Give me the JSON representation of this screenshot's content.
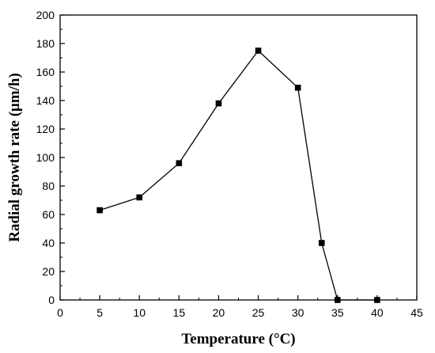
{
  "chart_data": {
    "type": "line",
    "title": "",
    "xlabel": "Temperature (°C)",
    "ylabel": "Radial growth rate (μm/h)",
    "xlim": [
      0,
      45
    ],
    "ylim": [
      0,
      200
    ],
    "xticks": [
      0,
      5,
      10,
      15,
      20,
      25,
      30,
      35,
      40,
      45
    ],
    "yticks": [
      0,
      20,
      40,
      60,
      80,
      100,
      120,
      140,
      160,
      180,
      200
    ],
    "grid": false,
    "legend": "none",
    "series": [
      {
        "x": [
          5,
          10,
          15,
          20,
          25,
          30,
          33,
          35,
          40
        ],
        "y": [
          63,
          72,
          96,
          138,
          175,
          149,
          40,
          0,
          0
        ],
        "marker": "square",
        "color": "#000000"
      }
    ]
  }
}
